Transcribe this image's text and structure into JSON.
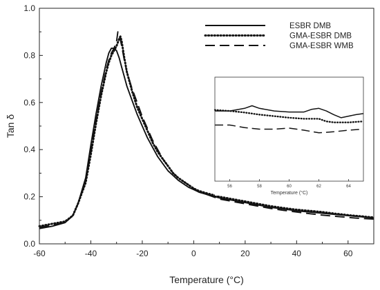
{
  "chart_data": [
    {
      "type": "line",
      "xlabel": "Temperature (°C)",
      "ylabel": "Tan δ",
      "xlim": [
        -60,
        70
      ],
      "ylim": [
        0.0,
        1.0
      ],
      "xticks": [
        "-60",
        "-40",
        "-20",
        "0",
        "20",
        "40",
        "60"
      ],
      "yticks": [
        "0.0",
        "0.2",
        "0.4",
        "0.6",
        "0.8",
        "1.0"
      ],
      "legend_position": "top-right",
      "series": [
        {
          "name": "ESBR DMB",
          "style": "solid",
          "x": [
            -60,
            -55,
            -50,
            -47,
            -45,
            -42,
            -40,
            -38,
            -36,
            -34,
            -33,
            -32,
            -31,
            -30,
            -29,
            -28,
            -27,
            -26,
            -24,
            -22,
            -20,
            -18,
            -16,
            -14,
            -12,
            -10,
            -8,
            -6,
            -4,
            -2,
            0,
            2,
            5,
            10,
            15,
            20,
            25,
            30,
            35,
            40,
            45,
            50,
            55,
            60,
            65,
            70
          ],
          "y": [
            0.065,
            0.075,
            0.09,
            0.12,
            0.17,
            0.28,
            0.42,
            0.55,
            0.67,
            0.77,
            0.81,
            0.83,
            0.83,
            0.82,
            0.79,
            0.75,
            0.71,
            0.67,
            0.61,
            0.55,
            0.5,
            0.45,
            0.41,
            0.37,
            0.34,
            0.31,
            0.29,
            0.27,
            0.255,
            0.24,
            0.23,
            0.22,
            0.21,
            0.195,
            0.185,
            0.175,
            0.165,
            0.155,
            0.148,
            0.14,
            0.135,
            0.13,
            0.125,
            0.12,
            0.115,
            0.11
          ]
        },
        {
          "name": "GMA-ESBR DMB",
          "style": "dotted",
          "x": [
            -60,
            -55,
            -50,
            -47,
            -45,
            -42,
            -40,
            -38,
            -36,
            -34,
            -33,
            -32,
            -31,
            -30,
            -29,
            -28.5,
            -28,
            -27,
            -26,
            -24,
            -22,
            -20,
            -18,
            -16,
            -14,
            -12,
            -10,
            -8,
            -6,
            -4,
            -2,
            0,
            2,
            5,
            10,
            15,
            20,
            25,
            30,
            35,
            40,
            45,
            50,
            55,
            60,
            65,
            70
          ],
          "y": [
            0.075,
            0.085,
            0.095,
            0.12,
            0.17,
            0.26,
            0.38,
            0.51,
            0.63,
            0.73,
            0.77,
            0.8,
            0.82,
            0.84,
            0.87,
            0.88,
            0.86,
            0.79,
            0.73,
            0.65,
            0.58,
            0.53,
            0.48,
            0.43,
            0.39,
            0.36,
            0.33,
            0.3,
            0.28,
            0.265,
            0.25,
            0.235,
            0.225,
            0.215,
            0.2,
            0.19,
            0.18,
            0.17,
            0.16,
            0.152,
            0.145,
            0.14,
            0.135,
            0.128,
            0.122,
            0.117,
            0.112
          ]
        },
        {
          "name": "GMA-ESBR WMB",
          "style": "dashed",
          "x": [
            -60,
            -55,
            -50,
            -47,
            -45,
            -42,
            -40,
            -38,
            -36,
            -34,
            -33,
            -32,
            -31,
            -30,
            -29.5,
            -29,
            -28,
            -27,
            -26,
            -24,
            -22,
            -20,
            -18,
            -16,
            -14,
            -12,
            -10,
            -8,
            -6,
            -4,
            -2,
            0,
            2,
            5,
            10,
            15,
            20,
            25,
            30,
            35,
            40,
            45,
            50,
            55,
            60,
            65,
            70
          ],
          "y": [
            0.07,
            0.08,
            0.09,
            0.12,
            0.17,
            0.27,
            0.39,
            0.52,
            0.64,
            0.74,
            0.78,
            0.81,
            0.83,
            0.86,
            0.9,
            0.89,
            0.84,
            0.78,
            0.73,
            0.66,
            0.6,
            0.54,
            0.49,
            0.44,
            0.4,
            0.36,
            0.33,
            0.3,
            0.28,
            0.265,
            0.25,
            0.235,
            0.22,
            0.21,
            0.19,
            0.18,
            0.17,
            0.16,
            0.15,
            0.142,
            0.135,
            0.128,
            0.122,
            0.117,
            0.112,
            0.108,
            0.105
          ]
        }
      ]
    },
    {
      "type": "line",
      "role": "inset",
      "xlabel": "Temperature (°C)",
      "ylabel": "",
      "xlim": [
        55,
        65
      ],
      "xticks": [
        "56",
        "58",
        "60",
        "62",
        "64"
      ],
      "ylim": [
        0.11,
        0.13
      ],
      "series": [
        {
          "name": "ESBR DMB",
          "style": "solid",
          "x": [
            55,
            56,
            57,
            57.5,
            58,
            59,
            60,
            61,
            61.5,
            62,
            62.5,
            63,
            63.5,
            64,
            64.5,
            65
          ],
          "y": [
            0.1235,
            0.1235,
            0.124,
            0.1245,
            0.124,
            0.1235,
            0.1233,
            0.1233,
            0.1238,
            0.124,
            0.1235,
            0.1228,
            0.1222,
            0.1225,
            0.1228,
            0.123
          ]
        },
        {
          "name": "GMA-ESBR DMB",
          "style": "dotted",
          "x": [
            55,
            56,
            57,
            58,
            59,
            60,
            61,
            62,
            62.5,
            63,
            64,
            65
          ],
          "y": [
            0.1237,
            0.1235,
            0.1232,
            0.1228,
            0.1225,
            0.1222,
            0.122,
            0.122,
            0.1215,
            0.1213,
            0.1213,
            0.1215
          ]
        },
        {
          "name": "GMA-ESBR WMB",
          "style": "dashed",
          "x": [
            55,
            56,
            57,
            58,
            59,
            60,
            61,
            62,
            63,
            64,
            65
          ],
          "y": [
            0.1208,
            0.1208,
            0.1203,
            0.12,
            0.12,
            0.1202,
            0.1198,
            0.1193,
            0.1195,
            0.1198,
            0.12
          ]
        }
      ]
    }
  ]
}
